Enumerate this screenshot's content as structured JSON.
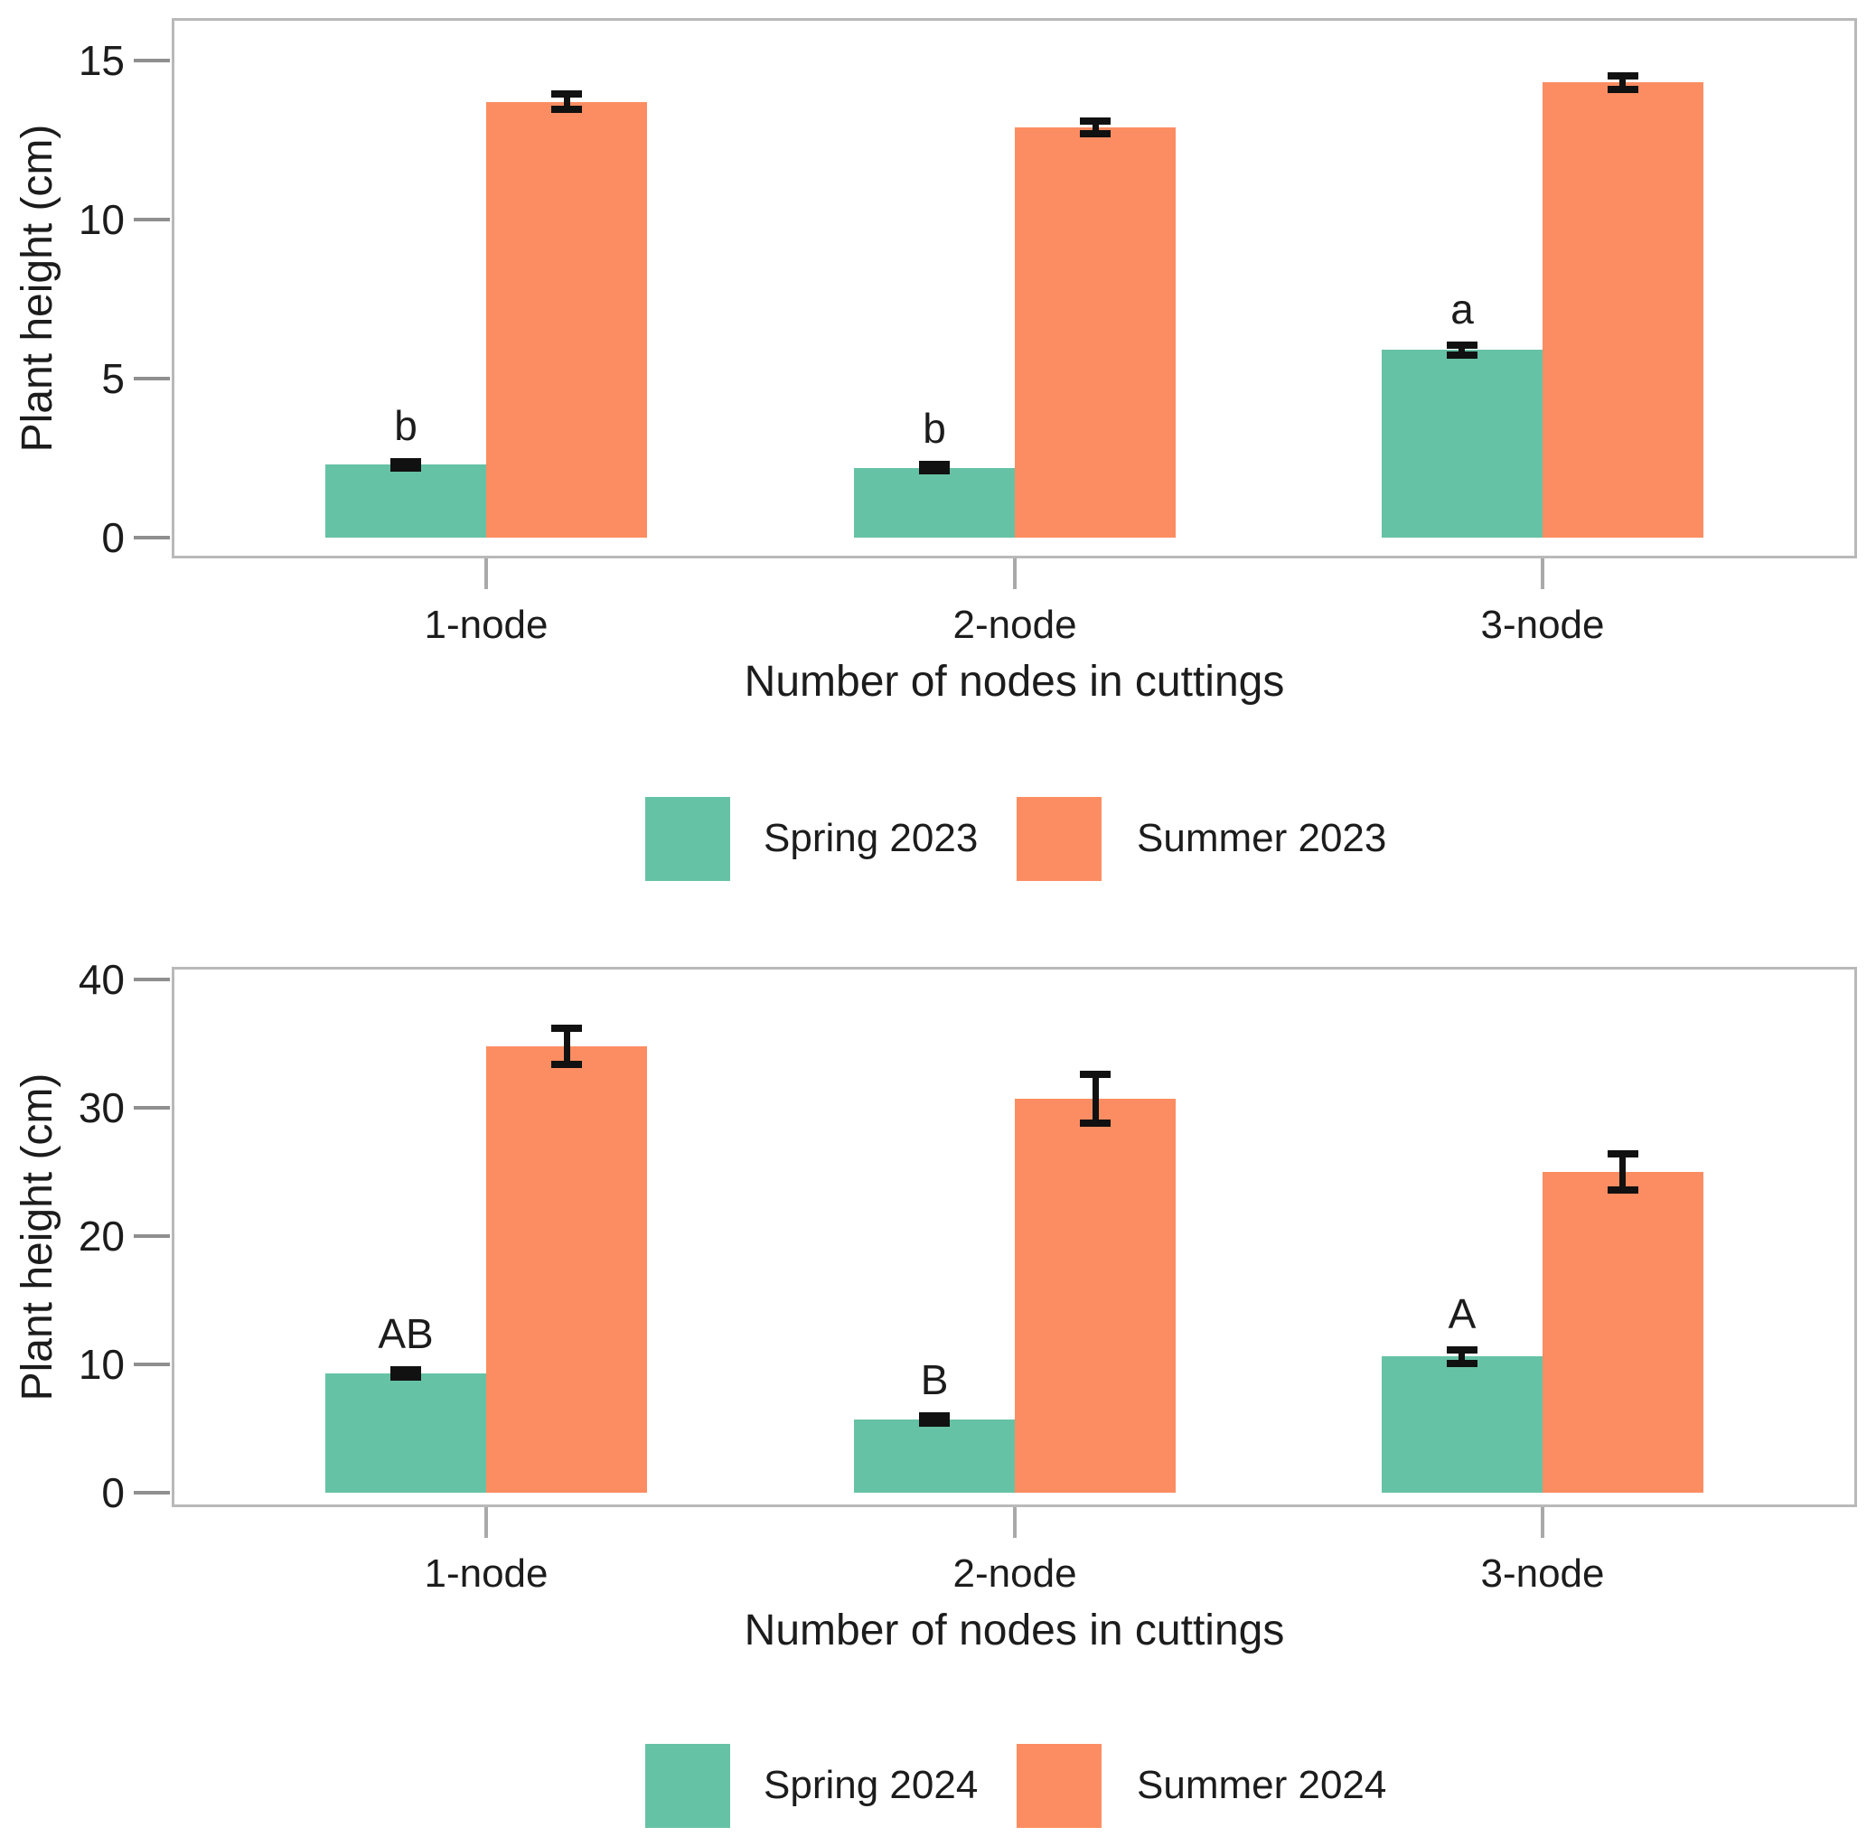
{
  "figure": {
    "background": "#ffffff"
  },
  "colors": {
    "spring": "#66C2A5",
    "summer": "#FC8D62",
    "error_bar": "#111111",
    "panel_border": "#b9b9b9",
    "axis_tick": "#8f8f8f",
    "text": "#1c1c1c"
  },
  "chart_data": [
    {
      "type": "bar",
      "title": "",
      "categories": [
        "1-node",
        "2-node",
        "3-node"
      ],
      "series": [
        {
          "name": "Spring 2023",
          "color": "#66C2A5",
          "values": [
            2.3,
            2.2,
            5.9
          ],
          "errors": [
            0.1,
            0.1,
            0.15
          ],
          "sig_labels": [
            "b",
            "b",
            "a"
          ]
        },
        {
          "name": "Summer 2023",
          "color": "#FC8D62",
          "values": [
            13.7,
            12.9,
            14.3
          ],
          "errors": [
            0.25,
            0.2,
            0.2
          ],
          "sig_labels": [
            "",
            "",
            ""
          ]
        }
      ],
      "xlabel": "Number of nodes in cuttings",
      "ylabel": "Plant height (cm)",
      "yticks": [
        0,
        5,
        10,
        15
      ],
      "ylim": [
        -0.65,
        16.33
      ],
      "grid": false,
      "legend_position": "bottom"
    },
    {
      "type": "bar",
      "title": "",
      "categories": [
        "1-node",
        "2-node",
        "3-node"
      ],
      "series": [
        {
          "name": "Spring 2024",
          "color": "#66C2A5",
          "values": [
            9.3,
            5.7,
            10.6
          ],
          "errors": [
            0.3,
            0.25,
            0.5
          ],
          "sig_labels": [
            "AB",
            "B",
            "A"
          ]
        },
        {
          "name": "Summer 2024",
          "color": "#FC8D62",
          "values": [
            34.8,
            30.7,
            25.0
          ],
          "errors": [
            1.4,
            1.9,
            1.4
          ],
          "sig_labels": [
            "",
            "",
            ""
          ]
        }
      ],
      "xlabel": "Number of nodes in cuttings",
      "ylabel": "Plant height (cm)",
      "yticks": [
        0,
        10,
        20,
        30,
        40
      ],
      "ylim": [
        -1.13,
        40.98
      ],
      "grid": false,
      "legend_position": "bottom"
    }
  ]
}
